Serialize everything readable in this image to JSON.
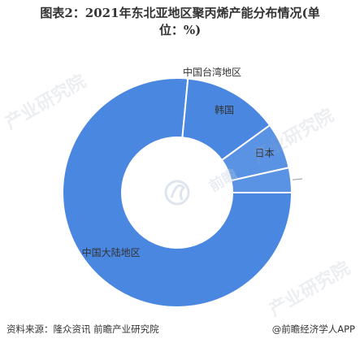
{
  "title": {
    "line1": "图表2：2021年东北亚地区聚丙烯产能分布情况(单",
    "line2": "位：%)"
  },
  "chart_data": {
    "type": "pie",
    "style": "donut",
    "title": "图表2：2021年东北亚地区聚丙烯产能分布情况(单位：%)",
    "slices": [
      {
        "label": "中国大陆地区",
        "value": 76.5,
        "color": "#4a87e0"
      },
      {
        "label": "韩国",
        "value": 13.5,
        "color": "#4a87e0"
      },
      {
        "label": "日本",
        "value": 6.5,
        "color": "#5b93e4"
      },
      {
        "label": "中国台湾地区",
        "value": 3.5,
        "color": "#5b93e4"
      }
    ],
    "legend": "none",
    "grid": false
  },
  "watermark": {
    "logo_text": "前瞻",
    "text": "产业研究院"
  },
  "footer": {
    "source": "资料来源：隆众资讯 前瞻产业研究院",
    "credit": "@前瞻经济学人APP"
  }
}
